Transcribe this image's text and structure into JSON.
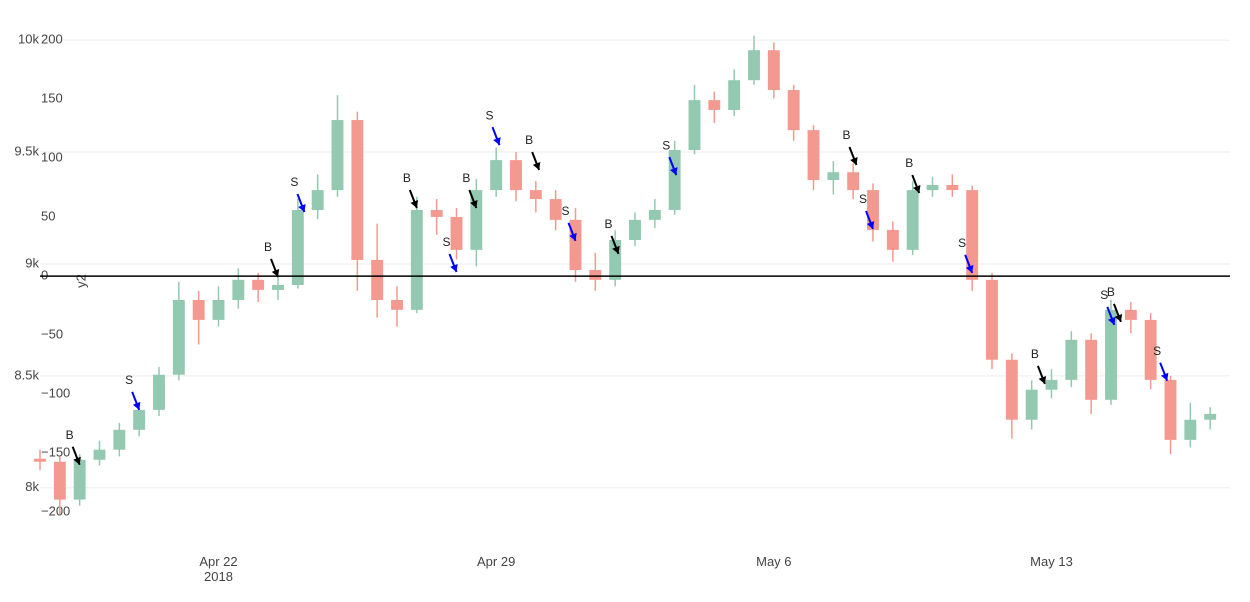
{
  "chart_data": {
    "type": "candlestick",
    "x": [
      "2018-04-17 12:00",
      "2018-04-18 00:00",
      "2018-04-18 12:00",
      "2018-04-19 00:00",
      "2018-04-19 12:00",
      "2018-04-20 00:00",
      "2018-04-20 12:00",
      "2018-04-21 00:00",
      "2018-04-21 12:00",
      "2018-04-22 00:00",
      "2018-04-22 12:00",
      "2018-04-23 00:00",
      "2018-04-23 12:00",
      "2018-04-24 00:00",
      "2018-04-24 12:00",
      "2018-04-25 00:00",
      "2018-04-25 12:00",
      "2018-04-26 00:00",
      "2018-04-26 12:00",
      "2018-04-27 00:00",
      "2018-04-27 12:00",
      "2018-04-28 00:00",
      "2018-04-28 12:00",
      "2018-04-29 00:00",
      "2018-04-29 12:00",
      "2018-04-30 00:00",
      "2018-04-30 12:00",
      "2018-05-01 00:00",
      "2018-05-01 12:00",
      "2018-05-02 00:00",
      "2018-05-02 12:00",
      "2018-05-03 00:00",
      "2018-05-03 12:00",
      "2018-05-04 00:00",
      "2018-05-04 12:00",
      "2018-05-05 00:00",
      "2018-05-05 12:00",
      "2018-05-06 00:00",
      "2018-05-06 12:00",
      "2018-05-07 00:00",
      "2018-05-07 12:00",
      "2018-05-08 00:00",
      "2018-05-08 12:00",
      "2018-05-09 00:00",
      "2018-05-09 12:00",
      "2018-05-10 00:00",
      "2018-05-10 12:00",
      "2018-05-11 00:00",
      "2018-05-11 12:00",
      "2018-05-12 00:00",
      "2018-05-12 12:00",
      "2018-05-13 00:00",
      "2018-05-13 12:00",
      "2018-05-14 00:00",
      "2018-05-14 12:00",
      "2018-05-15 00:00",
      "2018-05-15 12:00",
      "2018-05-16 00:00",
      "2018-05-16 12:00",
      "2018-05-17 00:00"
    ],
    "open": [
      8130,
      8116,
      7947,
      8125,
      8170,
      8259,
      8348,
      8505,
      8839,
      8750,
      8839,
      8929,
      8884,
      8906,
      9241,
      9330,
      9643,
      9018,
      8839,
      8795,
      9241,
      9210,
      9063,
      9330,
      9464,
      9330,
      9290,
      9197,
      8973,
      8929,
      9107,
      9197,
      9241,
      9509,
      9732,
      9688,
      9821,
      9955,
      9777,
      9598,
      9375,
      9410,
      9330,
      9152,
      9063,
      9330,
      9353,
      9330,
      8929,
      8572,
      8304,
      8438,
      8482,
      8661,
      8393,
      8795,
      8750,
      8482,
      8214,
      8304
    ],
    "high": [
      8170,
      8140,
      8150,
      8210,
      8290,
      8380,
      8540,
      8920,
      8880,
      8900,
      8980,
      8960,
      8950,
      9290,
      9400,
      9754,
      9680,
      9180,
      8900,
      9300,
      9290,
      9250,
      9380,
      9520,
      9500,
      9370,
      9330,
      9250,
      9050,
      9150,
      9230,
      9290,
      9550,
      9800,
      9770,
      9870,
      10020,
      9990,
      9800,
      9620,
      9460,
      9450,
      9360,
      9190,
      9370,
      9390,
      9400,
      9350,
      8960,
      8600,
      8480,
      8530,
      8700,
      8690,
      8840,
      8830,
      8780,
      8500,
      8380,
      8360
    ],
    "low": [
      8080,
      7880,
      7920,
      8100,
      8140,
      8230,
      8320,
      8480,
      8640,
      8720,
      8800,
      8830,
      8840,
      8890,
      9200,
      9300,
      8880,
      8760,
      8720,
      8780,
      9130,
      9020,
      8990,
      9300,
      9280,
      9230,
      9150,
      8920,
      8880,
      8900,
      9080,
      9160,
      9220,
      9490,
      9630,
      9660,
      9800,
      9740,
      9550,
      9330,
      9310,
      9290,
      9100,
      9010,
      9040,
      9300,
      9300,
      8880,
      8530,
      8220,
      8260,
      8400,
      8450,
      8330,
      8370,
      8690,
      8440,
      8150,
      8180,
      8260
    ],
    "close": [
      8116,
      7947,
      8125,
      8170,
      8259,
      8348,
      8505,
      8839,
      8750,
      8839,
      8929,
      8884,
      8906,
      9241,
      9330,
      9643,
      9018,
      8839,
      8795,
      9241,
      9210,
      9063,
      9330,
      9464,
      9330,
      9290,
      9197,
      8973,
      8929,
      9107,
      9197,
      9241,
      9509,
      9732,
      9688,
      9821,
      9955,
      9777,
      9598,
      9375,
      9410,
      9330,
      9152,
      9063,
      9330,
      9353,
      9330,
      8929,
      8572,
      8304,
      8438,
      8482,
      8661,
      8393,
      8795,
      8750,
      8482,
      8214,
      8304,
      8330
    ],
    "increasing_color": "#93c9b0",
    "decreasing_color": "#f4998f",
    "xlim": [
      "2018-04-17 12:00",
      "2018-05-17 12:00"
    ],
    "xticks": [
      {
        "value": "2018-04-22 00:00",
        "label": "Apr 22\n2018"
      },
      {
        "value": "2018-04-29 00:00",
        "label": "Apr 29"
      },
      {
        "value": "2018-05-06 00:00",
        "label": "May 6"
      },
      {
        "value": "2018-05-13 00:00",
        "label": "May 13"
      }
    ],
    "ylim": [
      7780,
      10090
    ],
    "yticks": [
      {
        "value": 8000,
        "label": "8k"
      },
      {
        "value": 8500,
        "label": "8.5k"
      },
      {
        "value": 9000,
        "label": "9k"
      },
      {
        "value": 9500,
        "label": "9.5k"
      },
      {
        "value": 10000,
        "label": "10k"
      }
    ],
    "y2lim": [
      -221,
      217
    ],
    "y2ticks": [
      {
        "value": -200,
        "label": "−200"
      },
      {
        "value": -150,
        "label": "−150"
      },
      {
        "value": -100,
        "label": "−100"
      },
      {
        "value": -50,
        "label": "−50"
      },
      0,
      50,
      100,
      150,
      200
    ],
    "y2_title": "y2",
    "y2_zeroline": true,
    "grid": true,
    "annotations": [
      {
        "text": "B",
        "x": "2018-04-18 12:00",
        "y": 8103,
        "arrowcolor": "#000000"
      },
      {
        "text": "S",
        "x": "2018-04-20 00:00",
        "y": 8348,
        "arrowcolor": "#0000ff"
      },
      {
        "text": "B",
        "x": "2018-04-23 12:00",
        "y": 8942,
        "arrowcolor": "#000000"
      },
      {
        "text": "S",
        "x": "2018-04-24 04:00",
        "y": 9232,
        "arrowcolor": "#0000ff"
      },
      {
        "text": "B",
        "x": "2018-04-27 00:00",
        "y": 9250,
        "arrowcolor": "#000000"
      },
      {
        "text": "S",
        "x": "2018-04-28 00:00",
        "y": 8964,
        "arrowcolor": "#0000ff"
      },
      {
        "text": "B",
        "x": "2018-04-28 12:00",
        "y": 9250,
        "arrowcolor": "#000000"
      },
      {
        "text": "S",
        "x": "2018-04-29 02:00",
        "y": 9531,
        "arrowcolor": "#0000ff"
      },
      {
        "text": "B",
        "x": "2018-04-30 02:00",
        "y": 9420,
        "arrowcolor": "#000000"
      },
      {
        "text": "S",
        "x": "2018-05-01 00:00",
        "y": 9103,
        "arrowcolor": "#0000ff"
      },
      {
        "text": "B",
        "x": "2018-05-02 02:00",
        "y": 9045,
        "arrowcolor": "#000000"
      },
      {
        "text": "S",
        "x": "2018-05-03 13:00",
        "y": 9397,
        "arrowcolor": "#0000ff"
      },
      {
        "text": "B",
        "x": "2018-05-08 02:00",
        "y": 9442,
        "arrowcolor": "#000000"
      },
      {
        "text": "S",
        "x": "2018-05-08 12:00",
        "y": 9156,
        "arrowcolor": "#0000ff"
      },
      {
        "text": "B",
        "x": "2018-05-09 16:00",
        "y": 9317,
        "arrowcolor": "#000000"
      },
      {
        "text": "S",
        "x": "2018-05-11 00:00",
        "y": 8960,
        "arrowcolor": "#0000ff"
      },
      {
        "text": "B",
        "x": "2018-05-12 20:00",
        "y": 8464,
        "arrowcolor": "#000000"
      },
      {
        "text": "S",
        "x": "2018-05-14 14:00",
        "y": 8728,
        "arrowcolor": "#0000ff"
      },
      {
        "text": "B",
        "x": "2018-05-14 18:00",
        "y": 8741,
        "arrowcolor": "#000000"
      },
      {
        "text": "S",
        "x": "2018-05-15 22:00",
        "y": 8478,
        "arrowcolor": "#0000ff"
      }
    ]
  }
}
